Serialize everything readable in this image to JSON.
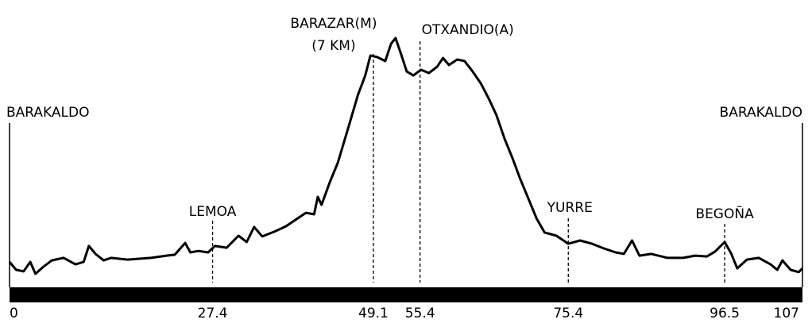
{
  "chart_data": {
    "type": "line",
    "x": [
      0,
      0.9,
      1.9,
      2.8,
      3.5,
      4.6,
      5.7,
      7.3,
      8.9,
      10.0,
      10.7,
      11.6,
      12.7,
      13.7,
      15.9,
      19.1,
      21.2,
      22.3,
      23.7,
      24.4,
      25.5,
      26.8,
      27.7,
      29.3,
      30.9,
      32.0,
      33.0,
      34.1,
      35.7,
      37.3,
      38.9,
      40.0,
      41.1,
      41.6,
      42.1,
      43.2,
      44.3,
      45.9,
      47.0,
      48.0,
      48.7,
      49.6,
      50.7,
      51.5,
      52.1,
      52.9,
      53.6,
      54.5,
      55.5,
      56.6,
      57.7,
      58.5,
      59.3,
      60.4,
      61.4,
      62.5,
      63.6,
      64.7,
      65.7,
      66.8,
      67.9,
      68.9,
      70.0,
      71.1,
      72.2,
      73.8,
      75.4,
      77.0,
      78.6,
      80.2,
      81.8,
      82.9,
      84.0,
      85.0,
      86.6,
      88.8,
      90.9,
      92.5,
      94.1,
      95.2,
      96.5,
      97.4,
      98.2,
      99.5,
      101.1,
      102.7,
      103.6,
      104.3,
      105.4,
      106.5,
      107.0
    ],
    "values": [
      10.2,
      7.0,
      6.4,
      10.2,
      5.4,
      8.3,
      10.8,
      11.8,
      9.2,
      10.2,
      16.6,
      13.4,
      10.8,
      11.8,
      11.1,
      11.8,
      12.7,
      13.1,
      17.8,
      14.0,
      14.6,
      14.0,
      16.6,
      15.9,
      20.7,
      18.2,
      24.2,
      20.4,
      22.3,
      24.5,
      27.7,
      29.9,
      29.3,
      36.3,
      33.1,
      42.0,
      50.0,
      65.9,
      77.1,
      85.0,
      93.0,
      92.4,
      90.8,
      97.8,
      100.0,
      93.0,
      86.6,
      85.0,
      87.3,
      86.0,
      88.5,
      92.0,
      89.2,
      91.4,
      90.8,
      86.6,
      81.8,
      75.5,
      69.1,
      59.6,
      51.6,
      43.6,
      35.7,
      27.7,
      22.0,
      20.7,
      17.5,
      18.8,
      17.5,
      15.6,
      14.0,
      13.4,
      18.8,
      12.7,
      13.4,
      11.8,
      11.8,
      12.7,
      12.4,
      14.3,
      18.2,
      13.4,
      7.6,
      11.1,
      11.8,
      9.2,
      7.0,
      10.8,
      7.0,
      6.1,
      7.6
    ],
    "color": "#000000",
    "xlim": [
      0,
      107
    ],
    "ylim": [
      0,
      100
    ],
    "xticks": [
      0,
      27.4,
      49.1,
      55.4,
      75.4,
      96.5,
      107
    ],
    "annotations": [
      {
        "x": 0,
        "text": [
          "BARAKALDO"
        ]
      },
      {
        "x": 27.4,
        "text": [
          "LEMOA"
        ]
      },
      {
        "x": 49.1,
        "text": [
          "BARAZAR(M)",
          "(7 KM)"
        ]
      },
      {
        "x": 55.4,
        "text": [
          "OTXANDIO(A)"
        ]
      },
      {
        "x": 75.4,
        "text": [
          "YURRE"
        ]
      },
      {
        "x": 96.5,
        "text": [
          "BEGOÑA"
        ]
      },
      {
        "x": 107,
        "text": [
          "BARAKALDO"
        ]
      }
    ]
  }
}
